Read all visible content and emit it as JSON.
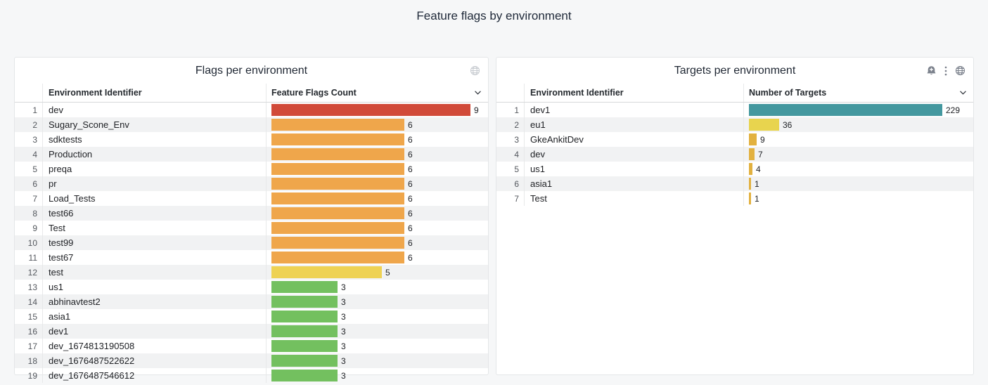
{
  "page": {
    "title": "Feature flags by environment"
  },
  "chart_data": [
    {
      "type": "table",
      "subtype": "horizontal-bar-gauge",
      "title": "Flags per environment",
      "icons": [
        "globe-icon"
      ],
      "columns": {
        "name": "Environment Identifier",
        "value": "Feature Flags Count"
      },
      "max": 9,
      "rows": [
        {
          "n": 1,
          "name": "dev",
          "value": 9,
          "color": "#d14a39"
        },
        {
          "n": 2,
          "name": "Sugary_Scone_Env",
          "value": 6,
          "color": "#efa64b"
        },
        {
          "n": 3,
          "name": "sdktests",
          "value": 6,
          "color": "#efa64b"
        },
        {
          "n": 4,
          "name": "Production",
          "value": 6,
          "color": "#efa64b"
        },
        {
          "n": 5,
          "name": "preqa",
          "value": 6,
          "color": "#efa64b"
        },
        {
          "n": 6,
          "name": "pr",
          "value": 6,
          "color": "#efa64b"
        },
        {
          "n": 7,
          "name": "Load_Tests",
          "value": 6,
          "color": "#efa64b"
        },
        {
          "n": 8,
          "name": "test66",
          "value": 6,
          "color": "#efa64b"
        },
        {
          "n": 9,
          "name": "Test",
          "value": 6,
          "color": "#efa64b"
        },
        {
          "n": 10,
          "name": "test99",
          "value": 6,
          "color": "#efa64b"
        },
        {
          "n": 11,
          "name": "test67",
          "value": 6,
          "color": "#efa64b"
        },
        {
          "n": 12,
          "name": "test",
          "value": 5,
          "color": "#eed254"
        },
        {
          "n": 13,
          "name": "us1",
          "value": 3,
          "color": "#73c05f"
        },
        {
          "n": 14,
          "name": "abhinavtest2",
          "value": 3,
          "color": "#73c05f"
        },
        {
          "n": 15,
          "name": "asia1",
          "value": 3,
          "color": "#73c05f"
        },
        {
          "n": 16,
          "name": "dev1",
          "value": 3,
          "color": "#73c05f"
        },
        {
          "n": 17,
          "name": "dev_1674813190508",
          "value": 3,
          "color": "#73c05f"
        },
        {
          "n": 18,
          "name": "dev_1676487522622",
          "value": 3,
          "color": "#73c05f"
        },
        {
          "n": 19,
          "name": "dev_1676487546612",
          "value": 3,
          "color": "#73c05f"
        }
      ]
    },
    {
      "type": "table",
      "subtype": "horizontal-bar-gauge",
      "title": "Targets per environment",
      "icons": [
        "alert-bell-icon",
        "kebab-menu-icon",
        "globe-icon"
      ],
      "columns": {
        "name": "Environment Identifier",
        "value": "Number of Targets"
      },
      "max": 229,
      "rows": [
        {
          "n": 1,
          "name": "dev1",
          "value": 229,
          "color": "#44989f"
        },
        {
          "n": 2,
          "name": "eu1",
          "value": 36,
          "color": "#e8d44e"
        },
        {
          "n": 3,
          "name": "GkeAnkitDev",
          "value": 9,
          "color": "#e2b13f"
        },
        {
          "n": 4,
          "name": "dev",
          "value": 7,
          "color": "#e2b13f"
        },
        {
          "n": 5,
          "name": "us1",
          "value": 4,
          "color": "#e2b13f"
        },
        {
          "n": 6,
          "name": "asia1",
          "value": 1,
          "color": "#e2b13f"
        },
        {
          "n": 7,
          "name": "Test",
          "value": 1,
          "color": "#e2b13f"
        }
      ]
    }
  ]
}
